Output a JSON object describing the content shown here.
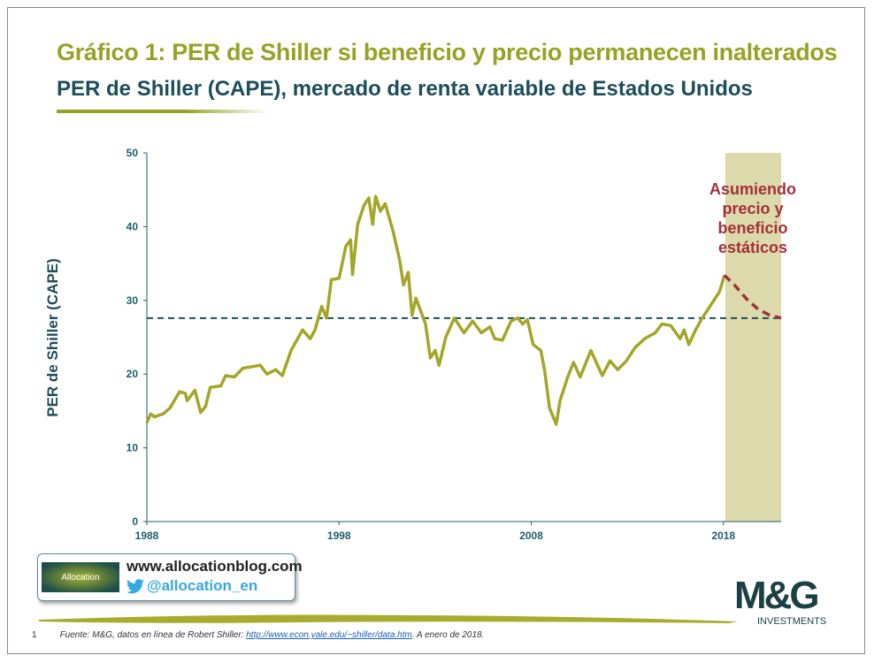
{
  "header": {
    "title": "Gráfico 1: PER de Shiller si beneficio y precio permanecen inalterados",
    "subtitle": "PER de Shiller (CAPE), mercado de renta variable de Estados Unidos"
  },
  "chart_data": {
    "type": "line",
    "ylabel": "PER de Shiller (CAPE)",
    "xlim": [
      1988,
      2021
    ],
    "ylim": [
      0,
      50
    ],
    "x_ticks": [
      "1988",
      "1998",
      "2008",
      "2018"
    ],
    "y_ticks": [
      "0",
      "10",
      "20",
      "30",
      "40",
      "50"
    ],
    "grid": false,
    "colors": {
      "series": "#a3a628",
      "mean": "#1b4f5a",
      "projection": "#a3303a",
      "shade": "#dcd9ab",
      "axis": "#1d5e68"
    },
    "series": [
      {
        "points": [
          [
            1988.0,
            13.4
          ],
          [
            1988.2,
            14.6
          ],
          [
            1988.4,
            14.2
          ],
          [
            1988.6,
            14.4
          ],
          [
            1988.85,
            14.6
          ],
          [
            1989.2,
            15.4
          ],
          [
            1989.7,
            17.6
          ],
          [
            1990.0,
            17.4
          ],
          [
            1990.1,
            16.4
          ],
          [
            1990.5,
            17.8
          ],
          [
            1990.8,
            14.8
          ],
          [
            1991.05,
            15.6
          ],
          [
            1991.3,
            18.2
          ],
          [
            1991.85,
            18.4
          ],
          [
            1992.1,
            19.8
          ],
          [
            1992.55,
            19.6
          ],
          [
            1993.0,
            20.8
          ],
          [
            1993.9,
            21.2
          ],
          [
            1994.25,
            20.0
          ],
          [
            1994.7,
            20.6
          ],
          [
            1995.05,
            19.8
          ],
          [
            1995.5,
            23.2
          ],
          [
            1996.1,
            26.0
          ],
          [
            1996.5,
            24.8
          ],
          [
            1996.75,
            26.0
          ],
          [
            1997.1,
            29.2
          ],
          [
            1997.35,
            27.6
          ],
          [
            1997.6,
            32.8
          ],
          [
            1998.0,
            33.0
          ],
          [
            1998.35,
            37.3
          ],
          [
            1998.6,
            38.2
          ],
          [
            1998.7,
            33.5
          ],
          [
            1998.97,
            40.3
          ],
          [
            1999.3,
            42.9
          ],
          [
            1999.55,
            43.9
          ],
          [
            1999.75,
            40.3
          ],
          [
            1999.9,
            44.1
          ],
          [
            2000.15,
            42.1
          ],
          [
            2000.4,
            43.1
          ],
          [
            2000.8,
            39.5
          ],
          [
            2001.15,
            35.5
          ],
          [
            2001.35,
            32.1
          ],
          [
            2001.6,
            33.8
          ],
          [
            2001.8,
            28.0
          ],
          [
            2002.0,
            30.3
          ],
          [
            2002.5,
            26.8
          ],
          [
            2002.75,
            22.2
          ],
          [
            2003.0,
            23.2
          ],
          [
            2003.2,
            21.2
          ],
          [
            2003.55,
            25.0
          ],
          [
            2004.0,
            27.6
          ],
          [
            2004.5,
            25.6
          ],
          [
            2004.95,
            27.2
          ],
          [
            2005.4,
            25.6
          ],
          [
            2005.85,
            26.4
          ],
          [
            2006.1,
            24.8
          ],
          [
            2006.5,
            24.6
          ],
          [
            2006.95,
            27.2
          ],
          [
            2007.3,
            27.6
          ],
          [
            2007.55,
            26.8
          ],
          [
            2007.8,
            27.4
          ],
          [
            2008.1,
            24.0
          ],
          [
            2008.5,
            23.2
          ],
          [
            2008.7,
            20.4
          ],
          [
            2008.95,
            15.4
          ],
          [
            2009.3,
            13.2
          ],
          [
            2009.5,
            16.4
          ],
          [
            2009.9,
            19.6
          ],
          [
            2010.2,
            21.6
          ],
          [
            2010.55,
            19.6
          ],
          [
            2011.1,
            23.2
          ],
          [
            2011.7,
            19.8
          ],
          [
            2012.1,
            21.8
          ],
          [
            2012.5,
            20.6
          ],
          [
            2012.95,
            21.8
          ],
          [
            2013.4,
            23.6
          ],
          [
            2013.9,
            24.8
          ],
          [
            2014.45,
            25.6
          ],
          [
            2014.8,
            26.8
          ],
          [
            2015.25,
            26.6
          ],
          [
            2015.75,
            24.8
          ],
          [
            2015.95,
            26.0
          ],
          [
            2016.2,
            24.0
          ],
          [
            2016.55,
            26.0
          ],
          [
            2016.9,
            27.6
          ],
          [
            2017.3,
            29.2
          ],
          [
            2017.8,
            31.2
          ],
          [
            2018.05,
            33.4
          ]
        ]
      },
      {
        "style": "dashed",
        "points": [
          [
            2018.05,
            33.4
          ],
          [
            2018.6,
            32.0
          ],
          [
            2019.2,
            30.2
          ],
          [
            2019.8,
            28.8
          ],
          [
            2020.4,
            28.0
          ],
          [
            2021.0,
            27.6
          ]
        ]
      }
    ],
    "mean_line": 27.6,
    "shaded_range": [
      2018,
      2021
    ],
    "annotation": [
      "Asumiendo",
      "precio y",
      "beneficio",
      "estáticos"
    ]
  },
  "footer": {
    "blog_logo_text": "Allocation",
    "blog_url": "www.allocationblog.com",
    "twitter_handle": "@allocation_en",
    "page_number": "1",
    "source_prefix": "Fuente: M&G, datos en línea de Robert Shiller: ",
    "source_link": "http://www.econ.yale.edu/~shiller/data.htm",
    "source_suffix": ". A enero de 2018.",
    "brand_logo": "M&G",
    "brand_sub": "INVESTMENTS"
  }
}
